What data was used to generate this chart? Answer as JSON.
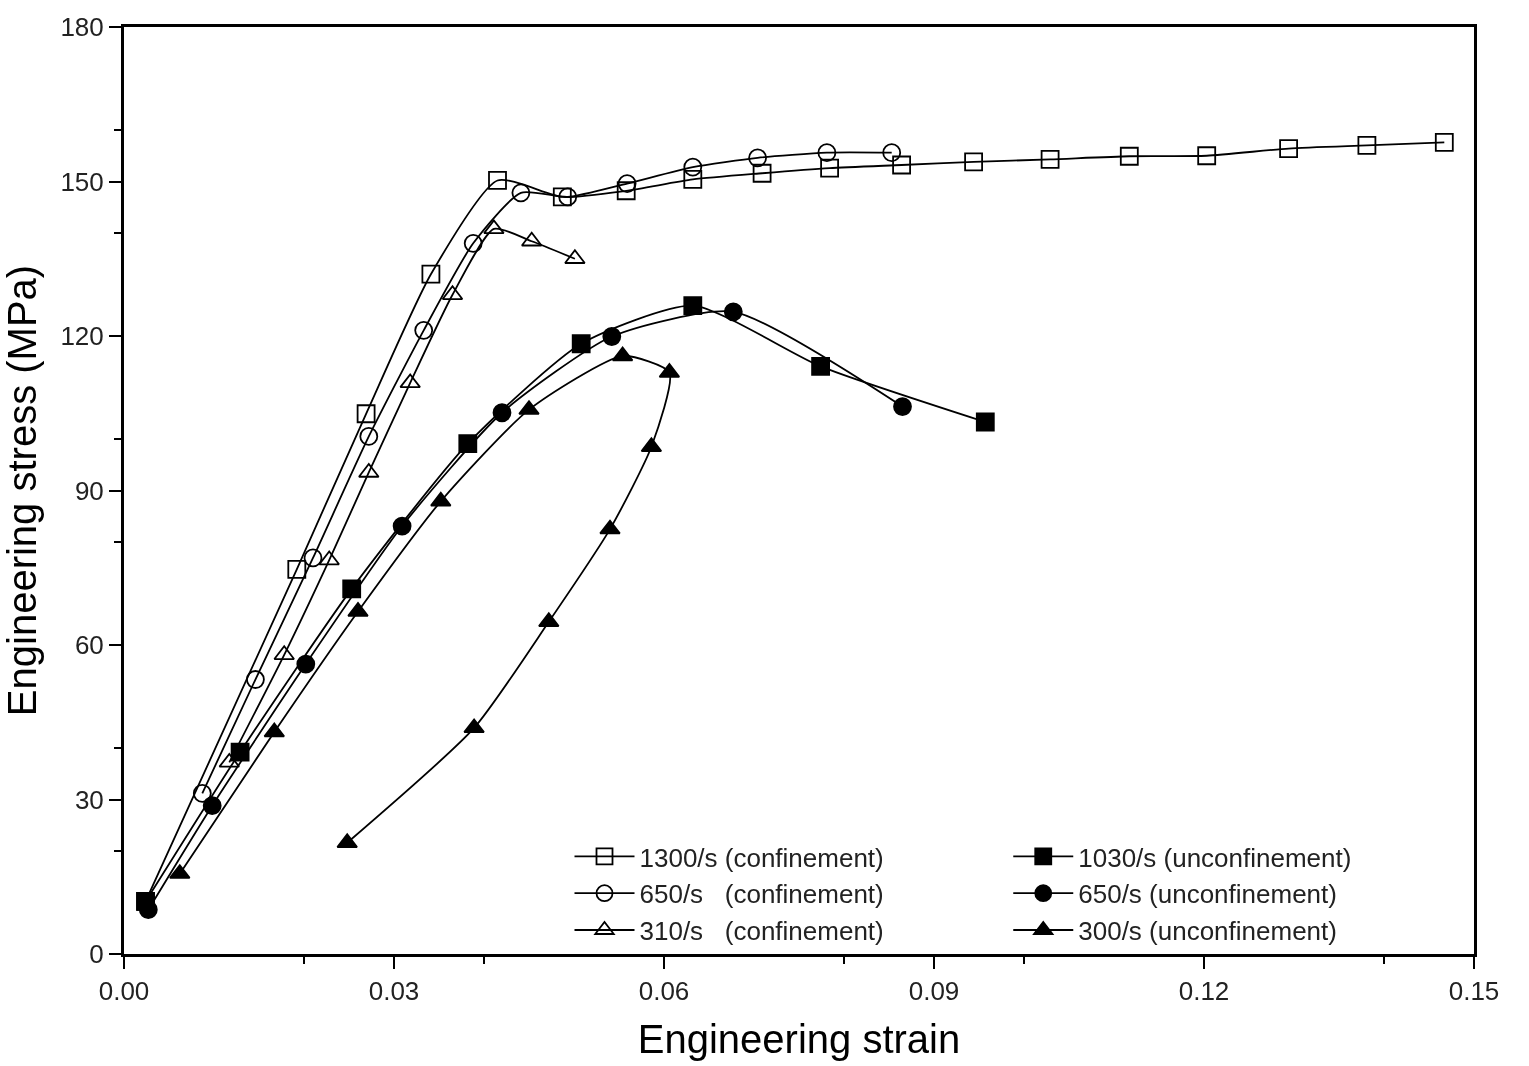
{
  "chart_data": {
    "type": "line",
    "xlabel": "Engineering strain",
    "ylabel": "Engineering stress (MPa)",
    "xlim": [
      0,
      0.15
    ],
    "xticks": [
      {
        "value": 0,
        "label": "0.00"
      },
      0.03,
      0.06,
      0.09,
      0.12,
      0.15
    ],
    "ylim": [
      0,
      180
    ],
    "yticks": [
      0,
      30,
      60,
      90,
      120,
      150,
      180
    ],
    "grid": false,
    "legend": "bottom right",
    "line_style": "solid",
    "series": [
      {
        "name": "1300/s (confinement)",
        "color": "#000000",
        "marker": "square-open",
        "x": [
          0.0024,
          0.0192,
          0.0269,
          0.0341,
          0.0415,
          0.0487,
          0.0558,
          0.0632,
          0.0709,
          0.0784,
          0.0864,
          0.0944,
          0.1029,
          0.1117,
          0.1203,
          0.1294,
          0.1381,
          0.1467
        ],
        "values": [
          10.2,
          74.7,
          104.9,
          132.0,
          150.2,
          147.0,
          148.2,
          150.4,
          151.6,
          152.6,
          153.2,
          153.8,
          154.3,
          154.9,
          155.0,
          156.4,
          157.0,
          157.6
        ]
      },
      {
        "name": "650/s   (confinement)",
        "color": "#000000",
        "marker": "circle-open",
        "x": [
          0.0087,
          0.0146,
          0.021,
          0.0272,
          0.0333,
          0.0388,
          0.0441,
          0.0493,
          0.0559,
          0.0632,
          0.0704,
          0.0781,
          0.0853
        ],
        "values": [
          31.2,
          53.3,
          76.9,
          100.5,
          121.1,
          138.0,
          147.8,
          147.0,
          149.6,
          152.8,
          154.6,
          155.6,
          155.6
        ]
      },
      {
        "name": "310/s   (confinement)",
        "color": "#000000",
        "marker": "triangle-up-open",
        "x": [
          0.0117,
          0.0178,
          0.0228,
          0.0272,
          0.0318,
          0.0365,
          0.0411,
          0.0453,
          0.0501
        ],
        "values": [
          37.2,
          58.1,
          76.5,
          93.5,
          110.9,
          128.0,
          140.8,
          138.4,
          135.0
        ]
      },
      {
        "name": "1030/s (unconfinement)",
        "color": "#000000",
        "marker": "square",
        "x": [
          0.0024,
          0.0129,
          0.0253,
          0.0382,
          0.0508,
          0.0632,
          0.0774,
          0.0957
        ],
        "values": [
          10.2,
          39.2,
          70.9,
          99.1,
          118.5,
          125.9,
          114.1,
          103.3
        ]
      },
      {
        "name": "650/s (unconfinement)",
        "color": "#000000",
        "marker": "circle",
        "x": [
          0.0027,
          0.0098,
          0.0202,
          0.0309,
          0.042,
          0.0542,
          0.0677,
          0.0865
        ],
        "values": [
          8.6,
          28.8,
          56.3,
          83.1,
          105.1,
          119.9,
          124.7,
          106.3
        ]
      },
      {
        "name": "300/s (unconfinement)",
        "color": "#000000",
        "marker": "triangle-up",
        "x": [
          0.0062,
          0.0167,
          0.026,
          0.0352,
          0.045,
          0.0554,
          0.0606,
          0.0586,
          0.054,
          0.0472,
          0.0389,
          0.0248
        ],
        "values": [
          15.6,
          43.1,
          66.5,
          87.9,
          105.7,
          116.1,
          112.9,
          98.5,
          82.5,
          64.5,
          43.9,
          21.6
        ]
      }
    ]
  }
}
